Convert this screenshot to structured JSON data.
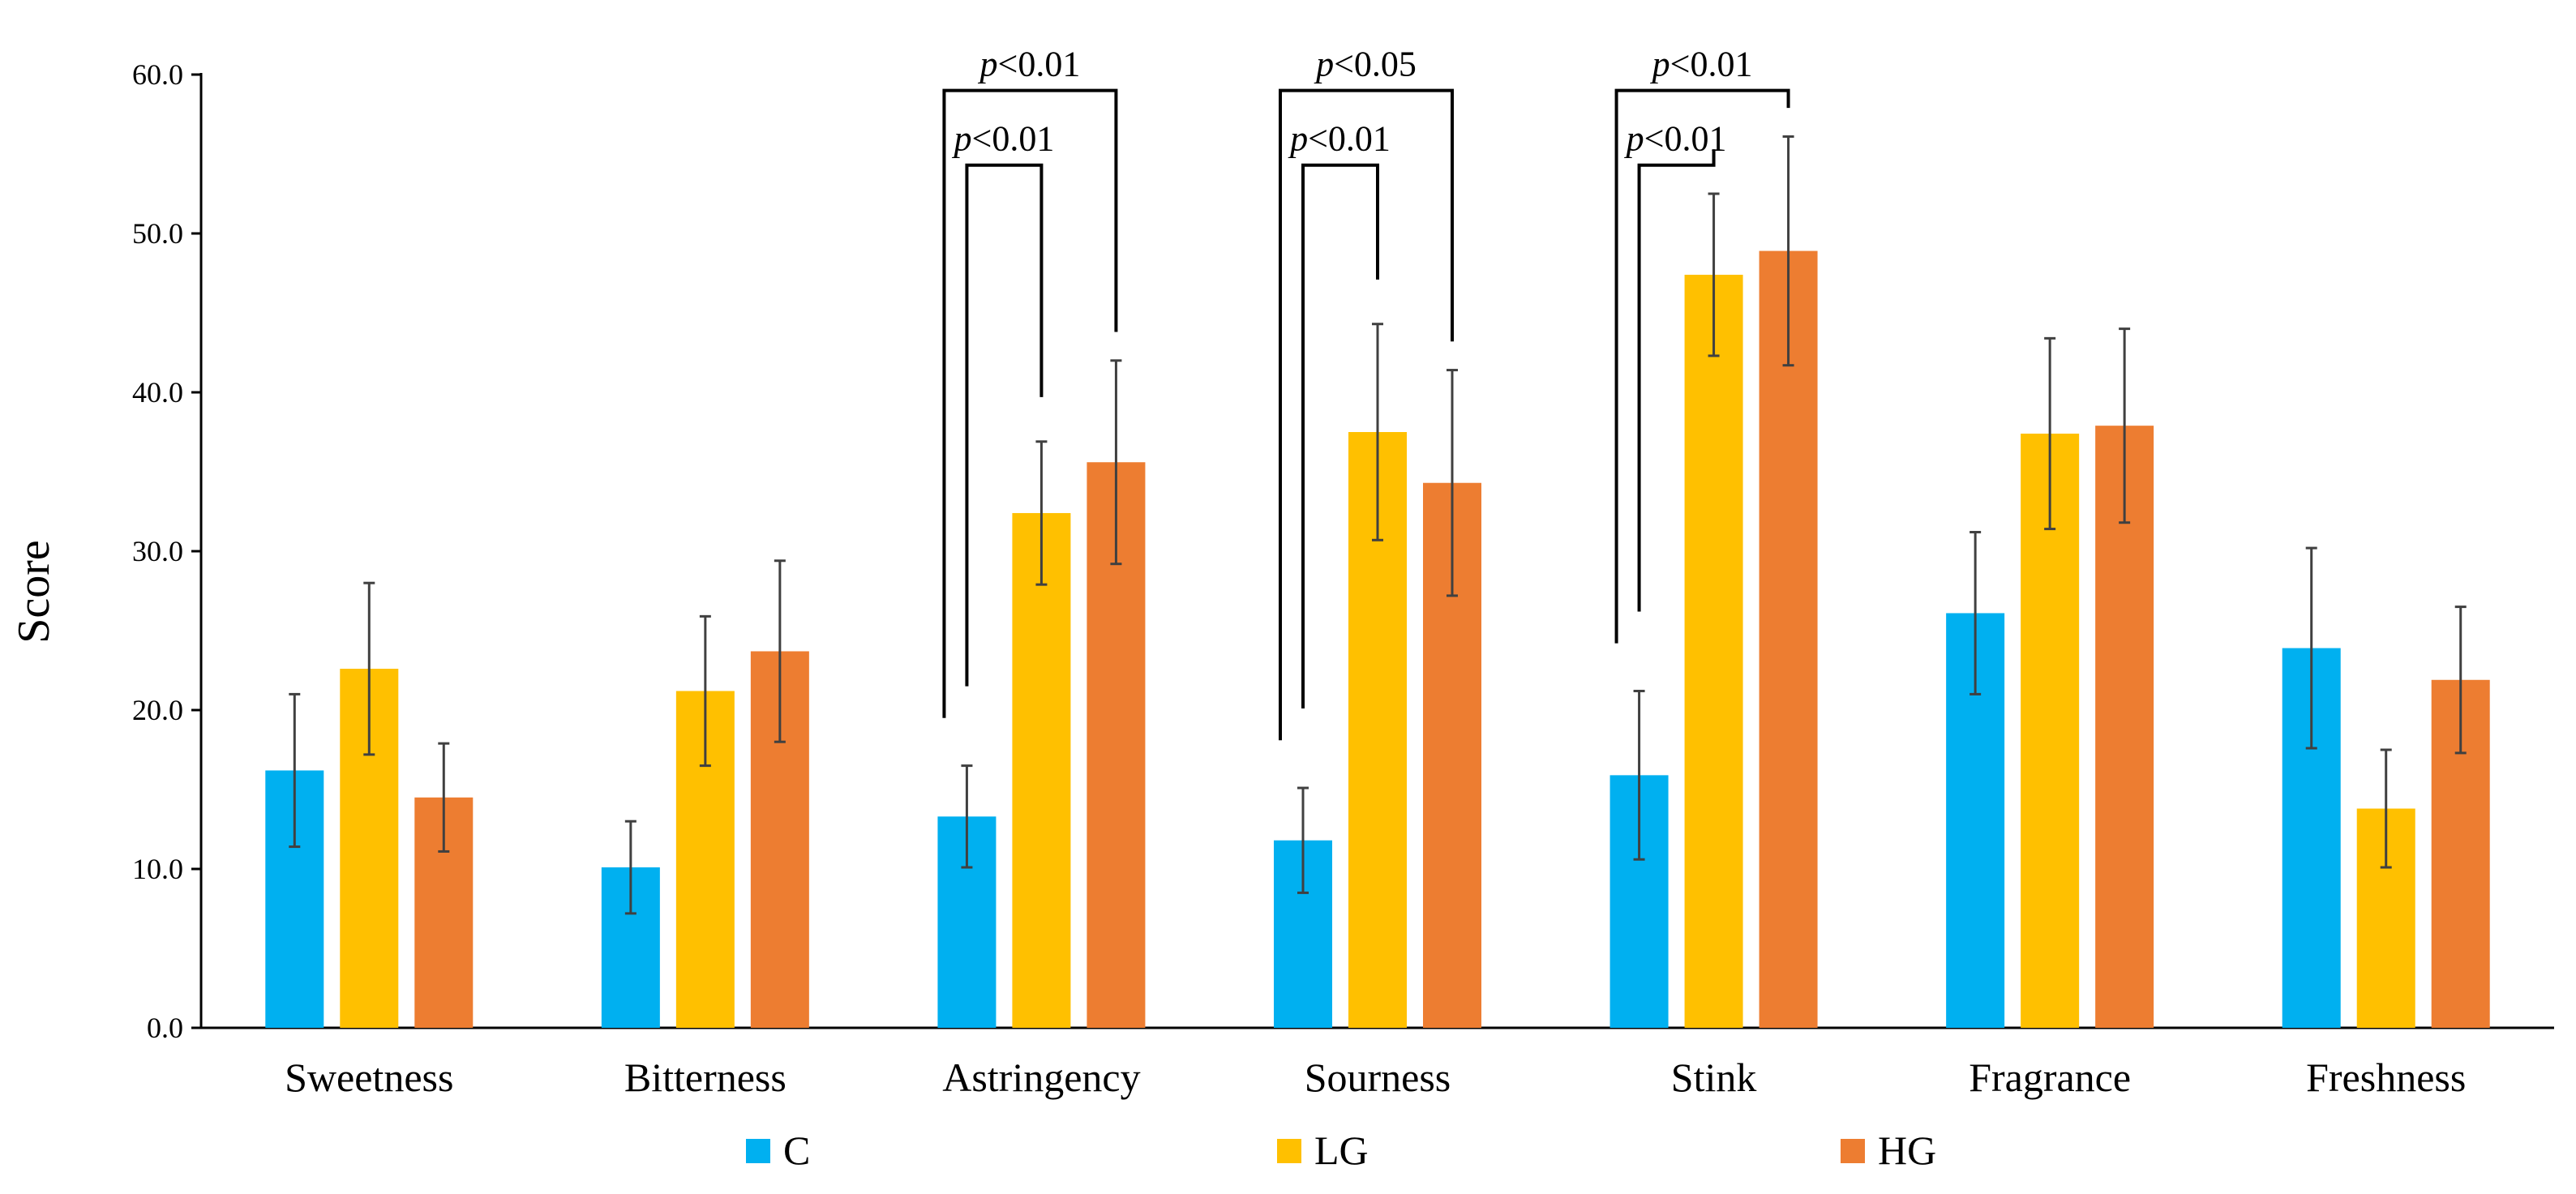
{
  "chart_data": {
    "type": "bar",
    "title": "",
    "xlabel": "",
    "ylabel": "Score",
    "ylim": [
      0,
      60
    ],
    "yticks": [
      "0.0",
      "10.0",
      "20.0",
      "30.0",
      "40.0",
      "50.0",
      "60.0"
    ],
    "categories": [
      "Sweetness",
      "Bitterness",
      "Astringency",
      "Sourness",
      "Stink",
      "Fragrance",
      "Freshness"
    ],
    "series": [
      {
        "name": "C",
        "color": "#00B0F0",
        "values": [
          16.2,
          10.1,
          13.3,
          11.8,
          15.9,
          26.1,
          23.9
        ],
        "errors": [
          4.8,
          2.9,
          3.2,
          3.3,
          5.3,
          5.1,
          6.3
        ]
      },
      {
        "name": "LG",
        "color": "#FFC000",
        "values": [
          22.6,
          21.2,
          32.4,
          37.5,
          47.4,
          37.4,
          13.8
        ],
        "errors": [
          5.4,
          4.7,
          4.5,
          6.8,
          5.1,
          6.0,
          3.7
        ]
      },
      {
        "name": "HG",
        "color": "#ED7D31",
        "values": [
          14.5,
          23.7,
          35.6,
          34.3,
          48.9,
          37.9,
          21.9
        ],
        "errors": [
          3.4,
          5.7,
          6.4,
          7.1,
          7.2,
          6.1,
          4.6
        ]
      }
    ],
    "grid": false,
    "legend": "bottom",
    "annotations": [
      {
        "category": "Astringency",
        "from": "C",
        "to": "HG",
        "p_symbol": "p",
        "p_rest": "<0.01",
        "level": 2
      },
      {
        "category": "Astringency",
        "from": "C",
        "to": "LG",
        "p_symbol": "p",
        "p_rest": "<0.01",
        "level": 1
      },
      {
        "category": "Sourness",
        "from": "C",
        "to": "HG",
        "p_symbol": "p",
        "p_rest": "<0.05",
        "level": 2
      },
      {
        "category": "Sourness",
        "from": "C",
        "to": "LG",
        "p_symbol": "p",
        "p_rest": "<0.01",
        "level": 1
      },
      {
        "category": "Stink",
        "from": "C",
        "to": "HG",
        "p_symbol": "p",
        "p_rest": "<0.01",
        "level": 2
      },
      {
        "category": "Stink",
        "from": "C",
        "to": "LG",
        "p_symbol": "p",
        "p_rest": "<0.01",
        "level": 1
      }
    ]
  }
}
